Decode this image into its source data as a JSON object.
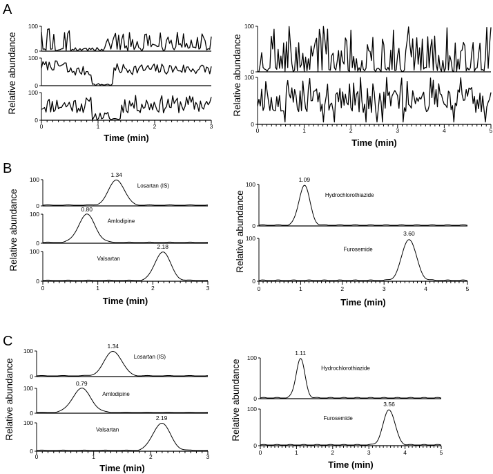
{
  "chart_data": [
    {
      "panel": "A",
      "side": "left",
      "type": "line",
      "ylabel": "Relative abundance",
      "xlabel": "Time (min)",
      "xlim": [
        0,
        3
      ],
      "xticks": [
        "0",
        "1",
        "2",
        "3"
      ],
      "traces": [
        {
          "yticks": [
            "100",
            "0"
          ],
          "noise_seed": 3,
          "mode": "blank1"
        },
        {
          "yticks": [
            "100",
            "0"
          ],
          "noise_seed": 7,
          "mode": "blank2"
        },
        {
          "yticks": [
            "100",
            "0"
          ],
          "noise_seed": 11,
          "mode": "blank3"
        }
      ]
    },
    {
      "panel": "A",
      "side": "right",
      "type": "line",
      "ylabel": "Relative abundance",
      "xlabel": "Time (min)",
      "xlim": [
        0,
        5
      ],
      "xticks": [
        "0",
        "1",
        "2",
        "3",
        "4",
        "5"
      ],
      "traces": [
        {
          "yticks": [
            "100",
            "0"
          ],
          "noise_seed": 19,
          "mode": "spiky"
        },
        {
          "yticks": [
            "100",
            "0"
          ],
          "noise_seed": 23,
          "mode": "dense"
        }
      ]
    },
    {
      "panel": "B",
      "side": "left",
      "type": "line",
      "ylabel": "Relative abundance",
      "xlabel": "Time (min)",
      "xlim": [
        0,
        3
      ],
      "xticks": [
        "0",
        "1",
        "2",
        "3"
      ],
      "traces": [
        {
          "yticks": [
            "100",
            "0"
          ],
          "compound": "Losartan (IS)",
          "peak_label": "1.34",
          "peak_time": 1.34,
          "width": 0.14
        },
        {
          "yticks": [
            "100",
            "0"
          ],
          "compound": "Amlodipine",
          "peak_label": "0.80",
          "peak_time": 0.8,
          "width": 0.15
        },
        {
          "yticks": [
            "100",
            "0"
          ],
          "compound": "Valsartan",
          "peak_label": "2.18",
          "peak_time": 2.18,
          "width": 0.14
        }
      ]
    },
    {
      "panel": "B",
      "side": "right",
      "type": "line",
      "ylabel": "Relative abundance",
      "xlabel": "Time (min)",
      "xlim": [
        0,
        5
      ],
      "xticks": [
        "0",
        "1",
        "2",
        "3",
        "4",
        "5"
      ],
      "traces": [
        {
          "yticks": [
            "100",
            "0"
          ],
          "compound": "Hydrochlorothiazide",
          "peak_label": "1.09",
          "peak_time": 1.09,
          "width": 0.13
        },
        {
          "yticks": [
            "100",
            "0"
          ],
          "compound": "Furosemide",
          "peak_label": "3.60",
          "peak_time": 3.6,
          "width": 0.17
        }
      ]
    },
    {
      "panel": "C",
      "side": "left",
      "type": "line",
      "ylabel": "Relative abundance",
      "xlabel": "Time (min)",
      "xlim": [
        0,
        3
      ],
      "xticks": [
        "0",
        "1",
        "2",
        "3"
      ],
      "traces": [
        {
          "yticks": [
            "100",
            "0"
          ],
          "compound": "Losartan (IS)",
          "peak_label": "1.34",
          "peak_time": 1.34,
          "width": 0.15
        },
        {
          "yticks": [
            "100",
            "0"
          ],
          "compound": "Amlodipine",
          "peak_label": "0.79",
          "peak_time": 0.79,
          "width": 0.16
        },
        {
          "yticks": [
            "100",
            "0"
          ],
          "compound": "Valsartan",
          "peak_label": "2.19",
          "peak_time": 2.19,
          "width": 0.15
        }
      ]
    },
    {
      "panel": "C",
      "side": "right",
      "type": "line",
      "ylabel": "Relative abundance",
      "xlabel": "Time (min)",
      "xlim": [
        0,
        5
      ],
      "xticks": [
        "0",
        "1",
        "2",
        "3",
        "4",
        "5"
      ],
      "traces": [
        {
          "yticks": [
            "100",
            "0"
          ],
          "compound": "Hydrochlorothiazide",
          "peak_label": "1.11",
          "peak_time": 1.11,
          "width": 0.12
        },
        {
          "yticks": [
            "100",
            "0"
          ],
          "compound": "Furosemide",
          "peak_label": "3.56",
          "peak_time": 3.56,
          "width": 0.16
        }
      ]
    }
  ],
  "panel_letters": [
    "A",
    "B",
    "C"
  ]
}
